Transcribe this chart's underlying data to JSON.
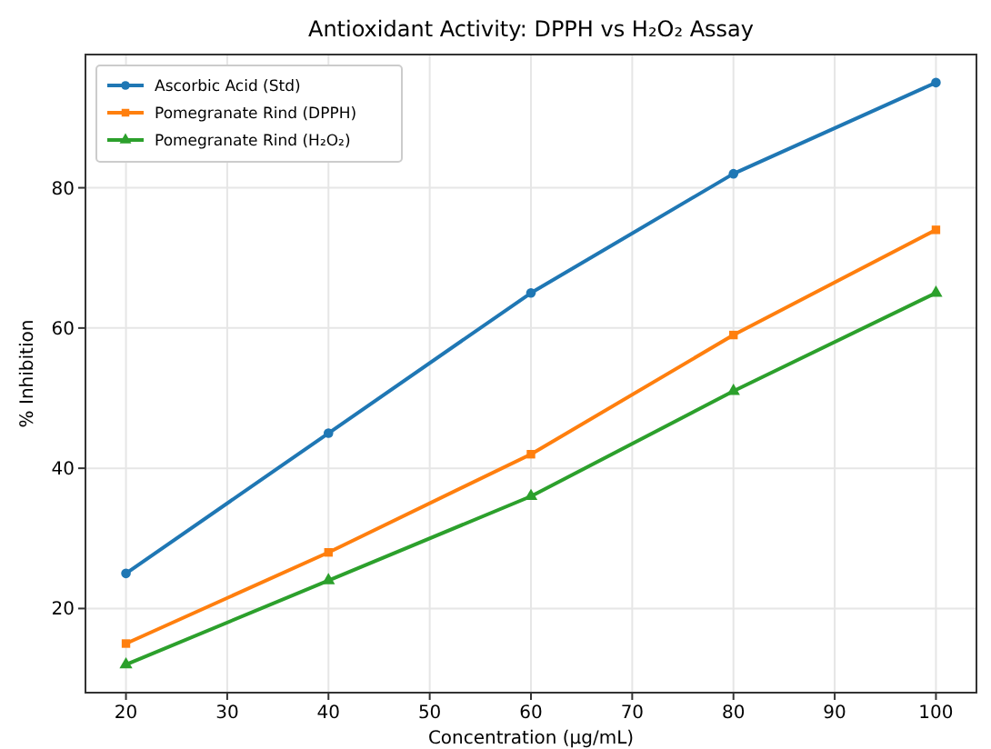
{
  "chart_data": {
    "type": "line",
    "title": "Antioxidant Activity: DPPH vs H₂O₂ Assay",
    "xlabel": "Concentration (µg/mL)",
    "ylabel": "% Inhibition",
    "x": [
      20,
      40,
      60,
      80,
      100
    ],
    "series": [
      {
        "name": "Ascorbic Acid (Std)",
        "color": "#1f77b4",
        "marker": "circle",
        "values": [
          25,
          45,
          65,
          82,
          95
        ]
      },
      {
        "name": "Pomegranate Rind (DPPH)",
        "color": "#ff7f0e",
        "marker": "square",
        "values": [
          15,
          28,
          42,
          59,
          74
        ]
      },
      {
        "name": "Pomegranate Rind (H₂O₂)",
        "color": "#2ca02c",
        "marker": "triangle",
        "values": [
          12,
          24,
          36,
          51,
          65
        ]
      }
    ],
    "xlim": [
      16,
      104
    ],
    "xticks": [
      20,
      30,
      40,
      50,
      60,
      70,
      80,
      90,
      100
    ],
    "ylim": [
      8,
      99
    ],
    "yticks": [
      20,
      40,
      60,
      80
    ],
    "grid": true,
    "legend": "top left",
    "line_style": "solid"
  }
}
